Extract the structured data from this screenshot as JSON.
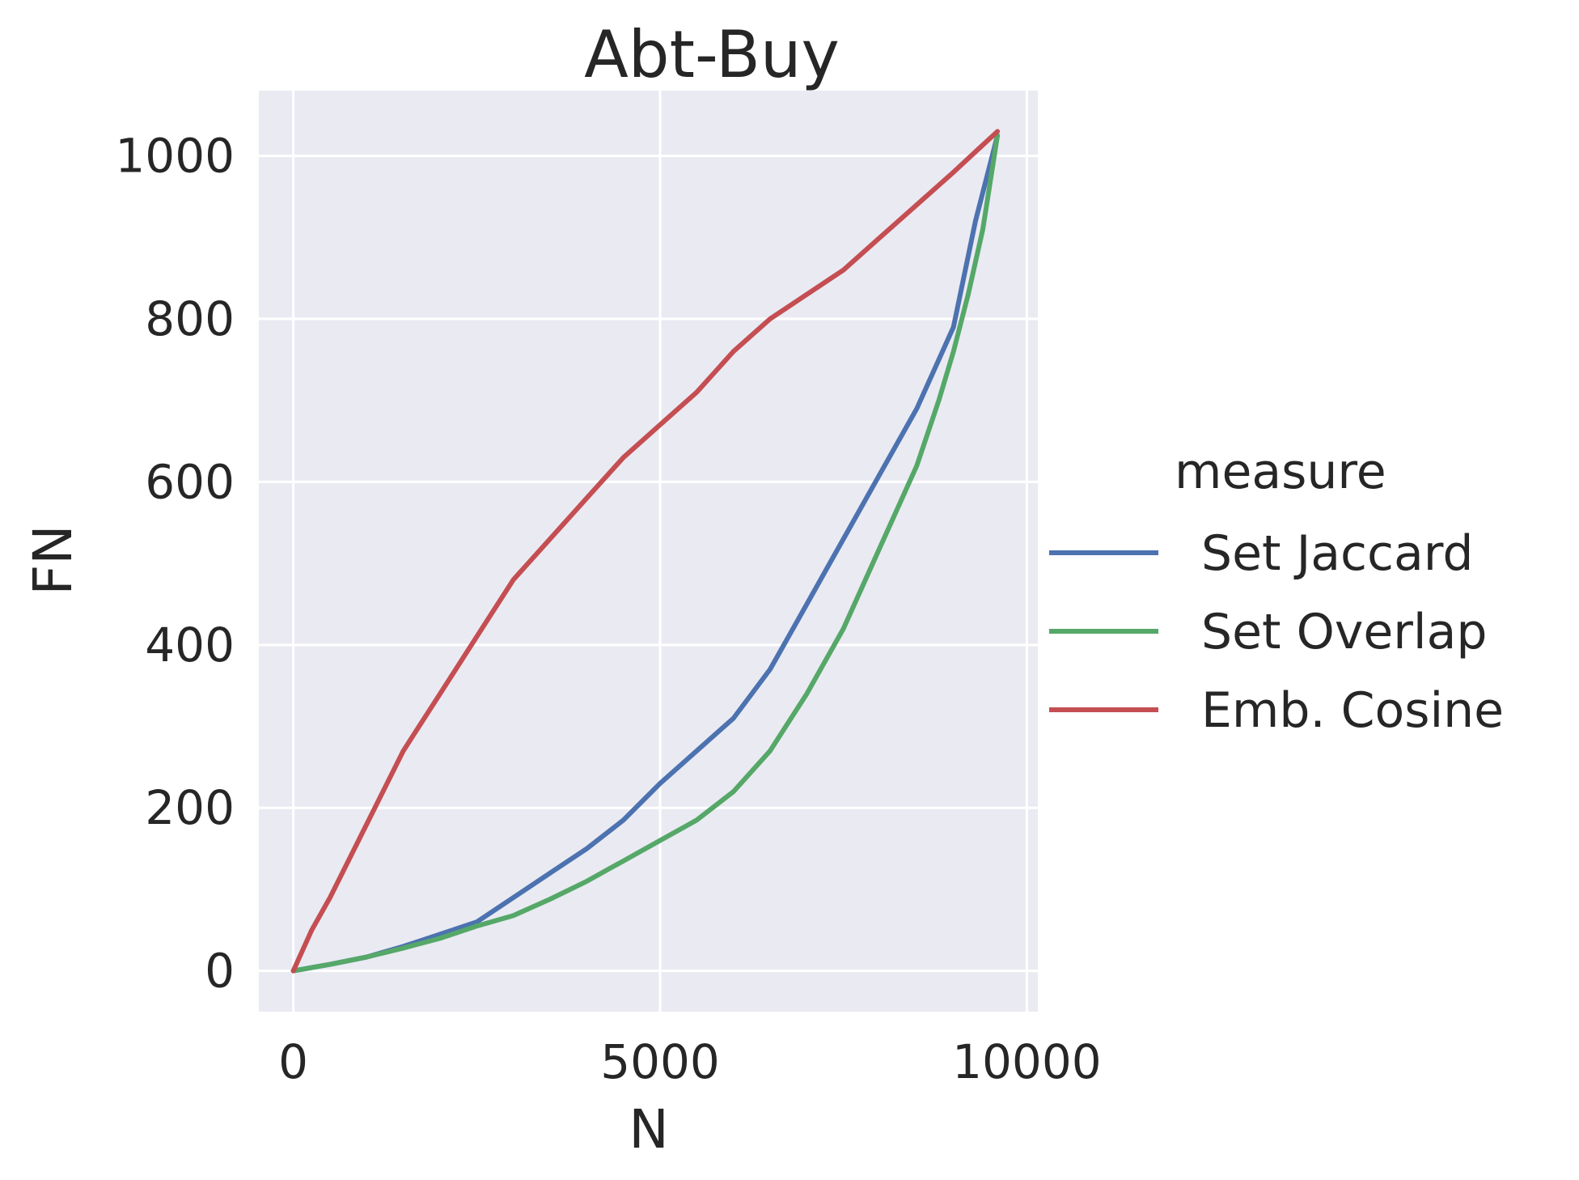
{
  "chart_data": {
    "type": "line",
    "title": "Abt-Buy",
    "xlabel": "N",
    "ylabel": "FN",
    "xlim": [
      -470,
      10150
    ],
    "ylim": [
      -50,
      1080
    ],
    "xticks": [
      0,
      5000,
      10000
    ],
    "xtick_labels": [
      "0",
      "5000",
      "10000"
    ],
    "yticks": [
      0,
      200,
      400,
      600,
      800,
      1000
    ],
    "ytick_labels": [
      "0",
      "200",
      "400",
      "600",
      "800",
      "1000"
    ],
    "grid": true,
    "background": "#eaeaf2",
    "legend": {
      "title": "measure",
      "placement": "right"
    },
    "series": [
      {
        "name": "Set Jaccard",
        "color": "#4c72b0",
        "x": [
          0,
          500,
          1000,
          1500,
          2000,
          2500,
          3000,
          3500,
          4000,
          4500,
          5000,
          5500,
          6000,
          6500,
          7000,
          7500,
          8000,
          8500,
          9000,
          9300,
          9600
        ],
        "y": [
          0,
          8,
          17,
          30,
          45,
          60,
          90,
          120,
          150,
          185,
          230,
          270,
          310,
          370,
          450,
          530,
          610,
          690,
          790,
          920,
          1025
        ]
      },
      {
        "name": "Set Overlap",
        "color": "#55a868",
        "x": [
          0,
          500,
          1000,
          1500,
          2000,
          2500,
          3000,
          3500,
          4000,
          4500,
          5000,
          5500,
          6000,
          6500,
          7000,
          7500,
          8000,
          8500,
          8800,
          9000,
          9200,
          9400,
          9600
        ],
        "y": [
          0,
          8,
          17,
          28,
          40,
          55,
          68,
          88,
          110,
          135,
          160,
          185,
          220,
          270,
          340,
          420,
          520,
          620,
          700,
          760,
          830,
          910,
          1025
        ]
      },
      {
        "name": "Emb. Cosine",
        "color": "#c44e52",
        "x": [
          0,
          250,
          500,
          1000,
          1500,
          2000,
          2500,
          3000,
          3500,
          4000,
          4500,
          5000,
          5500,
          6000,
          6500,
          7000,
          7500,
          8000,
          8500,
          9000,
          9300,
          9600
        ],
        "y": [
          0,
          50,
          90,
          180,
          270,
          340,
          410,
          480,
          530,
          580,
          630,
          670,
          710,
          760,
          800,
          830,
          860,
          900,
          940,
          980,
          1005,
          1030
        ]
      }
    ]
  }
}
